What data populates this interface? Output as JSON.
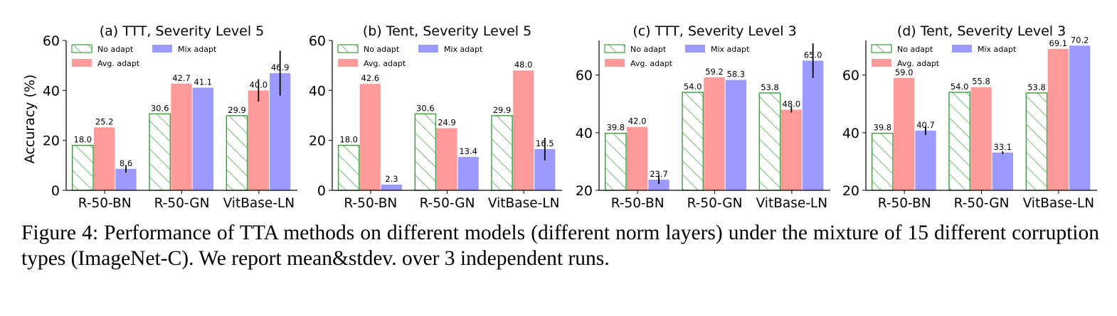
{
  "caption": "Figure 4: Performance of TTA methods on different models (different norm layers) under the mixture of 15 different corruption types (ImageNet-C). We report mean&stdev. over 3 independent runs.",
  "colors": {
    "no_adapt_edge": "#3a9e3a",
    "avg_adapt": "#ff9a9a",
    "mix_adapt": "#9a9aff"
  },
  "chart_data": [
    {
      "type": "bar",
      "title": "(a) TTT, Severity Level 5",
      "ylabel": "Accuracy (%)",
      "ylim": [
        0,
        60
      ],
      "yticks": [
        "0",
        "20",
        "40",
        "60"
      ],
      "categories": [
        "R-50-BN",
        "R-50-GN",
        "VitBase-LN"
      ],
      "legend": [
        "No adapt",
        "Mix adapt",
        "Avg. adapt"
      ],
      "series": [
        {
          "name": "No adapt",
          "values": [
            18.0,
            30.6,
            29.9
          ],
          "labels": [
            "18.0",
            "30.6",
            "29.9"
          ],
          "err": [
            0,
            0,
            0
          ]
        },
        {
          "name": "Avg. adapt",
          "values": [
            25.2,
            42.7,
            40.0
          ],
          "labels": [
            "25.2",
            "42.7",
            "40.0"
          ],
          "err": [
            0,
            0,
            4.5
          ]
        },
        {
          "name": "Mix adapt",
          "values": [
            8.6,
            41.1,
            46.9
          ],
          "labels": [
            "8.6",
            "41.1",
            "46.9"
          ],
          "err": [
            1.5,
            0,
            9
          ]
        }
      ]
    },
    {
      "type": "bar",
      "title": "(b) Tent, Severity Level 5",
      "ylabel": "",
      "ylim": [
        0,
        60
      ],
      "yticks": [
        "0",
        "20",
        "40",
        "60"
      ],
      "categories": [
        "R-50-BN",
        "R-50-GN",
        "VitBase-LN"
      ],
      "legend": [
        "No adapt",
        "Mix adapt",
        "Avg. adapt"
      ],
      "series": [
        {
          "name": "No adapt",
          "values": [
            18.0,
            30.6,
            29.9
          ],
          "labels": [
            "18.0",
            "30.6",
            "29.9"
          ],
          "err": [
            0,
            0,
            0
          ]
        },
        {
          "name": "Avg. adapt",
          "values": [
            42.6,
            24.9,
            48.0
          ],
          "labels": [
            "42.6",
            "24.9",
            "48.0"
          ],
          "err": [
            0,
            0,
            0
          ]
        },
        {
          "name": "Mix adapt",
          "values": [
            2.3,
            13.4,
            16.5
          ],
          "labels": [
            "2.3",
            "13.4",
            "16.5"
          ],
          "err": [
            0,
            0,
            4.5
          ]
        }
      ]
    },
    {
      "type": "bar",
      "title": "(c) TTT, Severity Level 3",
      "ylabel": "",
      "ylim": [
        20,
        72
      ],
      "yticks": [
        "20",
        "40",
        "60"
      ],
      "categories": [
        "R-50-BN",
        "R-50-GN",
        "VitBase-LN"
      ],
      "legend": [
        "No adapt",
        "Mix adapt",
        "Avg. adapt"
      ],
      "series": [
        {
          "name": "No adapt",
          "values": [
            39.8,
            54.0,
            53.8
          ],
          "labels": [
            "39.8",
            "54.0",
            "53.8"
          ],
          "err": [
            0,
            0,
            0
          ]
        },
        {
          "name": "Avg. adapt",
          "values": [
            42.0,
            59.2,
            48.0
          ],
          "labels": [
            "42.0",
            "59.2",
            "48.0"
          ],
          "err": [
            0,
            0,
            1
          ]
        },
        {
          "name": "Mix adapt",
          "values": [
            23.7,
            58.3,
            65.0
          ],
          "labels": [
            "23.7",
            "58.3",
            "65.0"
          ],
          "err": [
            1.5,
            0,
            6
          ]
        }
      ]
    },
    {
      "type": "bar",
      "title": "(d) Tent, Severity Level 3",
      "ylabel": "",
      "ylim": [
        20,
        72
      ],
      "yticks": [
        "20",
        "40",
        "60"
      ],
      "categories": [
        "R-50-BN",
        "R-50-GN",
        "VitBase-LN"
      ],
      "legend": [
        "No adapt",
        "Mix adapt",
        "Avg. adapt"
      ],
      "series": [
        {
          "name": "No adapt",
          "values": [
            39.8,
            54.0,
            53.8
          ],
          "labels": [
            "39.8",
            "54.0",
            "53.8"
          ],
          "err": [
            0,
            0,
            0
          ]
        },
        {
          "name": "Avg. adapt",
          "values": [
            59.0,
            55.8,
            69.1
          ],
          "labels": [
            "59.0",
            "55.8",
            "69.1"
          ],
          "err": [
            0,
            0,
            0
          ]
        },
        {
          "name": "Mix adapt",
          "values": [
            40.7,
            33.1,
            70.2
          ],
          "labels": [
            "40.7",
            "33.1",
            "70.2"
          ],
          "err": [
            1.5,
            0.5,
            0
          ]
        }
      ]
    }
  ]
}
